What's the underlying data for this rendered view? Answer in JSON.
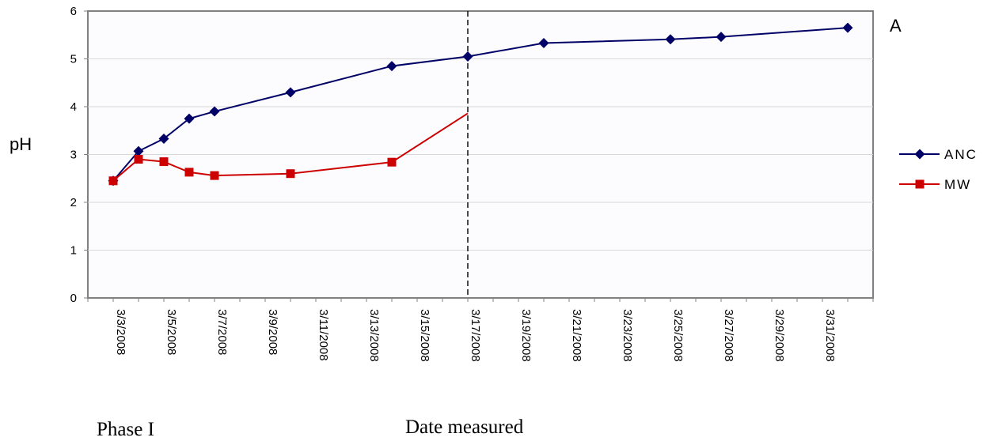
{
  "chart_data": {
    "type": "line",
    "title": "",
    "panel_label": "A",
    "xlabel": "Date measured",
    "ylabel": "pH",
    "phase_label": "Phase I",
    "ylim": [
      0,
      6
    ],
    "yticks": [
      "0",
      "1",
      "2",
      "3",
      "4",
      "5",
      "6"
    ],
    "xlim": [
      "3/2/2008",
      "4/2/2008"
    ],
    "xticks": [
      "3/3/2008",
      "3/5/2008",
      "3/7/2008",
      "3/9/2008",
      "3/11/2008",
      "3/13/2008",
      "3/15/2008",
      "3/17/2008",
      "3/19/2008",
      "3/21/2008",
      "3/23/2008",
      "3/25/2008",
      "3/27/2008",
      "3/29/2008",
      "3/31/2008"
    ],
    "grid": true,
    "legend_position": "right",
    "divider_date": "3/17/2008",
    "series": [
      {
        "name": "ANC",
        "color": "#000066",
        "marker": "diamond",
        "x": [
          "3/3/2008",
          "3/4/2008",
          "3/5/2008",
          "3/6/2008",
          "3/7/2008",
          "3/10/2008",
          "3/14/2008",
          "3/17/2008",
          "3/20/2008",
          "3/25/2008",
          "3/27/2008",
          "4/1/2008"
        ],
        "values": [
          2.45,
          3.07,
          3.33,
          3.75,
          3.9,
          4.3,
          4.85,
          5.05,
          5.33,
          5.41,
          5.46,
          5.65
        ]
      },
      {
        "name": "MW",
        "color": "#cc0000",
        "marker": "square",
        "x": [
          "3/3/2008",
          "3/4/2008",
          "3/5/2008",
          "3/6/2008",
          "3/7/2008",
          "3/10/2008",
          "3/14/2008",
          "3/17/2008"
        ],
        "values": [
          2.45,
          2.9,
          2.85,
          2.63,
          2.56,
          2.6,
          2.84,
          3.86
        ]
      }
    ]
  }
}
